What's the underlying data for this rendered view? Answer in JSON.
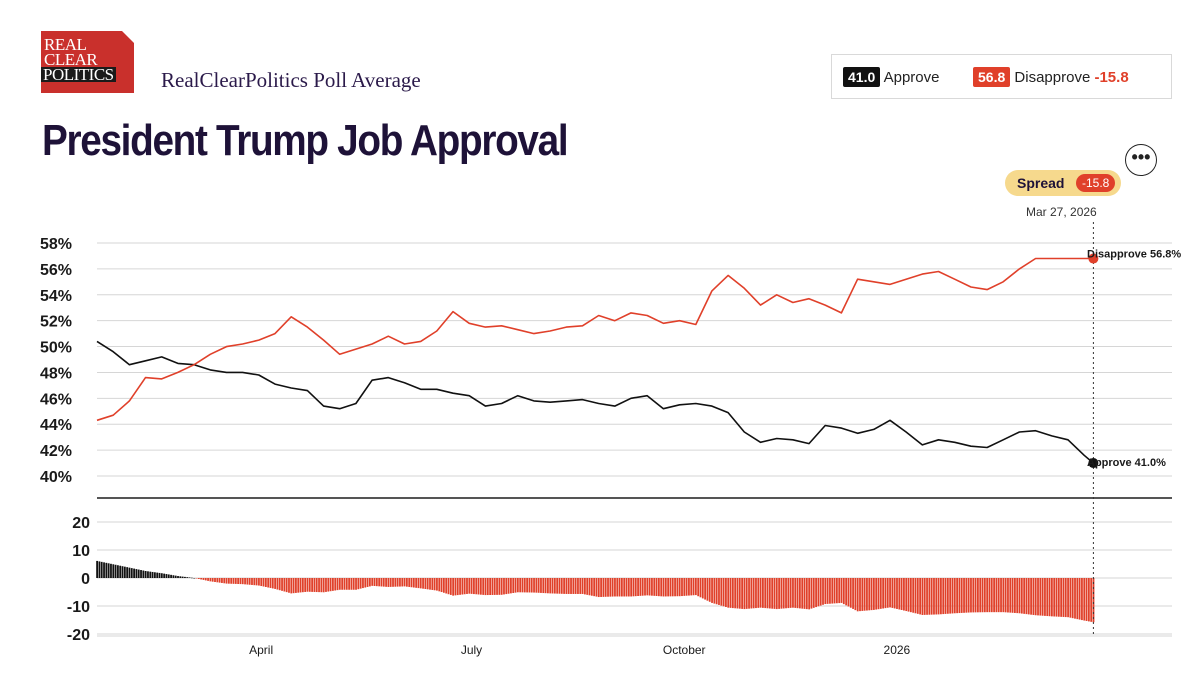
{
  "header": {
    "logo": [
      "REAL",
      "CLEAR",
      "POLITICS"
    ],
    "subtitle": "RealClearPolitics Poll Average",
    "title": "President Trump Job Approval"
  },
  "summary": {
    "approve_value": "41.0",
    "approve_label": "Approve",
    "disapprove_value": "56.8",
    "disapprove_label": "Disapprove",
    "spread": "-15.8"
  },
  "spread_badge": {
    "label": "Spread",
    "value": "-15.8"
  },
  "latest_date": "Mar 27, 2026",
  "more_button": {
    "icon": "more-horizontal-icon",
    "label": "•••"
  },
  "colors": {
    "approve": "#111111",
    "disapprove": "#e0402a",
    "spread_pill": "#f6d98d",
    "title": "#1e1238"
  },
  "chart_data": [
    {
      "type": "line",
      "ylim": [
        40,
        58
      ],
      "yticks": [
        "58%",
        "56%",
        "54%",
        "52%",
        "50%",
        "48%",
        "46%",
        "44%",
        "42%",
        "40%"
      ],
      "ytick_values": [
        58,
        56,
        54,
        52,
        50,
        48,
        46,
        44,
        42,
        40
      ],
      "xticks": [
        "April",
        "July",
        "October",
        "2026"
      ],
      "xtick_dates": [
        "2025-04-01",
        "2025-07-01",
        "2025-10-01",
        "2026-01-01"
      ],
      "xlim": [
        "2025-01-20",
        "2026-04-30"
      ],
      "grid": true,
      "end_labels": {
        "disapprove": "Disapprove 56.8%",
        "approve": "Approve 41.0%"
      },
      "series": [
        {
          "name": "Approve",
          "color": "#111111",
          "x": [
            "2025-01-20",
            "2025-01-27",
            "2025-02-03",
            "2025-02-10",
            "2025-02-17",
            "2025-02-24",
            "2025-03-03",
            "2025-03-10",
            "2025-03-17",
            "2025-03-24",
            "2025-03-31",
            "2025-04-07",
            "2025-04-14",
            "2025-04-21",
            "2025-04-28",
            "2025-05-05",
            "2025-05-12",
            "2025-05-19",
            "2025-05-26",
            "2025-06-02",
            "2025-06-09",
            "2025-06-16",
            "2025-06-23",
            "2025-06-30",
            "2025-07-07",
            "2025-07-14",
            "2025-07-21",
            "2025-07-28",
            "2025-08-04",
            "2025-08-11",
            "2025-08-18",
            "2025-08-25",
            "2025-09-01",
            "2025-09-08",
            "2025-09-15",
            "2025-09-22",
            "2025-09-29",
            "2025-10-06",
            "2025-10-13",
            "2025-10-20",
            "2025-10-27",
            "2025-11-03",
            "2025-11-10",
            "2025-11-17",
            "2025-11-24",
            "2025-12-01",
            "2025-12-08",
            "2025-12-15",
            "2025-12-22",
            "2025-12-29",
            "2026-01-05",
            "2026-01-12",
            "2026-01-19",
            "2026-01-26",
            "2026-02-02",
            "2026-02-09",
            "2026-02-16",
            "2026-02-23",
            "2026-03-02",
            "2026-03-09",
            "2026-03-16",
            "2026-03-23",
            "2026-03-27"
          ],
          "values": [
            50.4,
            49.6,
            48.6,
            48.9,
            49.2,
            48.7,
            48.6,
            48.2,
            48.0,
            48.0,
            47.8,
            47.1,
            46.8,
            46.6,
            45.4,
            45.2,
            45.6,
            47.4,
            47.6,
            47.2,
            46.7,
            46.7,
            46.4,
            46.2,
            45.4,
            45.6,
            46.2,
            45.8,
            45.7,
            45.8,
            45.9,
            45.6,
            45.4,
            46.0,
            46.2,
            45.2,
            45.5,
            45.6,
            45.4,
            44.9,
            43.4,
            42.6,
            42.9,
            42.8,
            42.5,
            43.9,
            43.7,
            43.3,
            43.6,
            44.3,
            43.4,
            42.4,
            42.8,
            42.6,
            42.3,
            42.2,
            42.8,
            43.4,
            43.5,
            43.1,
            42.8,
            41.6,
            41.0
          ]
        },
        {
          "name": "Disapprove",
          "color": "#e0402a",
          "x": [
            "2025-01-20",
            "2025-01-27",
            "2025-02-03",
            "2025-02-10",
            "2025-02-17",
            "2025-02-24",
            "2025-03-03",
            "2025-03-10",
            "2025-03-17",
            "2025-03-24",
            "2025-03-31",
            "2025-04-07",
            "2025-04-14",
            "2025-04-21",
            "2025-04-28",
            "2025-05-05",
            "2025-05-12",
            "2025-05-19",
            "2025-05-26",
            "2025-06-02",
            "2025-06-09",
            "2025-06-16",
            "2025-06-23",
            "2025-06-30",
            "2025-07-07",
            "2025-07-14",
            "2025-07-21",
            "2025-07-28",
            "2025-08-04",
            "2025-08-11",
            "2025-08-18",
            "2025-08-25",
            "2025-09-01",
            "2025-09-08",
            "2025-09-15",
            "2025-09-22",
            "2025-09-29",
            "2025-10-06",
            "2025-10-13",
            "2025-10-20",
            "2025-10-27",
            "2025-11-03",
            "2025-11-10",
            "2025-11-17",
            "2025-11-24",
            "2025-12-01",
            "2025-12-08",
            "2025-12-15",
            "2025-12-22",
            "2025-12-29",
            "2026-01-05",
            "2026-01-12",
            "2026-01-19",
            "2026-01-26",
            "2026-02-02",
            "2026-02-09",
            "2026-02-16",
            "2026-02-23",
            "2026-03-02",
            "2026-03-09",
            "2026-03-16",
            "2026-03-23",
            "2026-03-27"
          ],
          "values": [
            44.3,
            44.7,
            45.8,
            47.6,
            47.5,
            48.0,
            48.6,
            49.4,
            50.0,
            50.2,
            50.5,
            51.0,
            52.3,
            51.5,
            50.5,
            49.4,
            49.8,
            50.2,
            50.8,
            50.2,
            50.4,
            51.2,
            52.7,
            51.8,
            51.5,
            51.6,
            51.3,
            51.0,
            51.2,
            51.5,
            51.6,
            52.4,
            52.0,
            52.6,
            52.4,
            51.8,
            52.0,
            51.7,
            54.3,
            55.5,
            54.5,
            53.2,
            54.0,
            53.4,
            53.7,
            53.2,
            52.6,
            55.2,
            55.0,
            54.8,
            55.2,
            55.6,
            55.8,
            55.2,
            54.6,
            54.4,
            55.0,
            56.0,
            56.8,
            56.8,
            56.8,
            56.8,
            56.8
          ]
        }
      ]
    },
    {
      "type": "bar",
      "title": "Spread",
      "ylim": [
        -20,
        25
      ],
      "yticks": [
        "20",
        "10",
        "0",
        "-10",
        "-20"
      ],
      "ytick_values": [
        20,
        10,
        0,
        -10,
        -20
      ],
      "grid": true,
      "series": [
        {
          "name": "Spread",
          "x": [
            "2025-01-20",
            "2025-01-27",
            "2025-02-03",
            "2025-02-10",
            "2025-02-17",
            "2025-02-24",
            "2025-03-03",
            "2025-03-10",
            "2025-03-17",
            "2025-03-24",
            "2025-03-31",
            "2025-04-07",
            "2025-04-14",
            "2025-04-21",
            "2025-04-28",
            "2025-05-05",
            "2025-05-12",
            "2025-05-19",
            "2025-05-26",
            "2025-06-02",
            "2025-06-09",
            "2025-06-16",
            "2025-06-23",
            "2025-06-30",
            "2025-07-07",
            "2025-07-14",
            "2025-07-21",
            "2025-07-28",
            "2025-08-04",
            "2025-08-11",
            "2025-08-18",
            "2025-08-25",
            "2025-09-01",
            "2025-09-08",
            "2025-09-15",
            "2025-09-22",
            "2025-09-29",
            "2025-10-06",
            "2025-10-13",
            "2025-10-20",
            "2025-10-27",
            "2025-11-03",
            "2025-11-10",
            "2025-11-17",
            "2025-11-24",
            "2025-12-01",
            "2025-12-08",
            "2025-12-15",
            "2025-12-22",
            "2025-12-29",
            "2026-01-05",
            "2026-01-12",
            "2026-01-19",
            "2026-01-26",
            "2026-02-02",
            "2026-02-09",
            "2026-02-16",
            "2026-02-23",
            "2026-03-02",
            "2026-03-09",
            "2026-03-16",
            "2026-03-23",
            "2026-03-27"
          ],
          "values": [
            6.1,
            4.9,
            3.7,
            2.5,
            1.7,
            0.7,
            -0.0,
            -1.2,
            -2.0,
            -2.2,
            -2.7,
            -3.9,
            -5.5,
            -4.9,
            -5.1,
            -4.2,
            -4.2,
            -2.8,
            -3.2,
            -3.0,
            -3.7,
            -4.5,
            -6.3,
            -5.6,
            -6.1,
            -6.0,
            -5.1,
            -5.2,
            -5.5,
            -5.7,
            -5.7,
            -6.8,
            -6.6,
            -6.6,
            -6.2,
            -6.6,
            -6.5,
            -6.1,
            -8.9,
            -10.6,
            -11.1,
            -10.6,
            -11.1,
            -10.6,
            -11.2,
            -9.3,
            -8.9,
            -11.9,
            -11.4,
            -10.5,
            -11.8,
            -13.2,
            -13.0,
            -12.6,
            -12.3,
            -12.2,
            -12.2,
            -12.6,
            -13.3,
            -13.7,
            -14.0,
            -15.2,
            -15.8
          ]
        }
      ]
    }
  ]
}
